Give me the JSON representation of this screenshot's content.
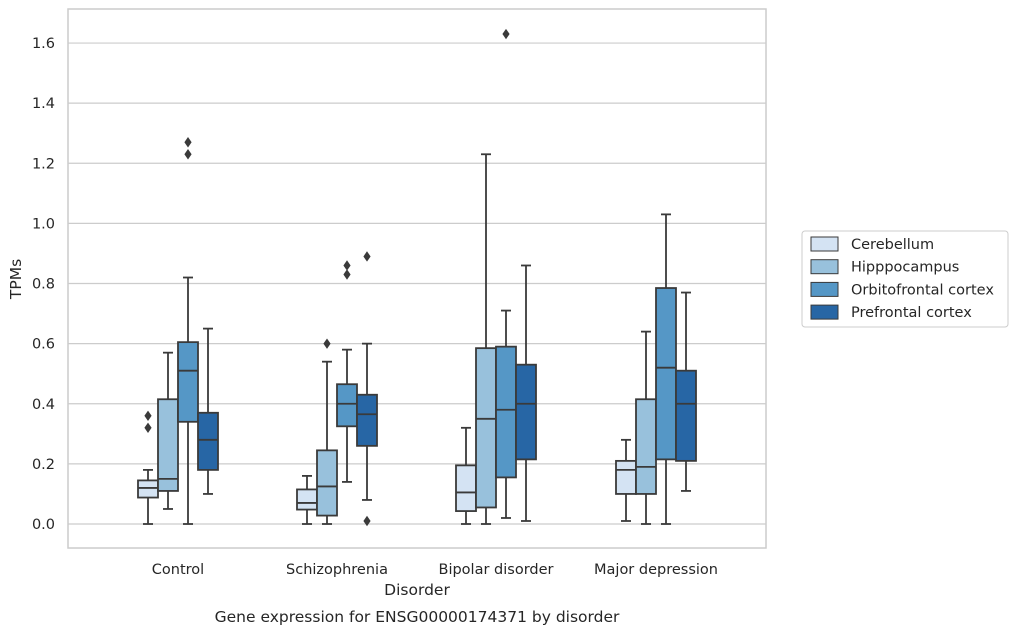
{
  "chart_data": {
    "type": "box",
    "title": "",
    "caption": "Gene expression for ENSG00000174371 by disorder",
    "xlabel": "Disorder",
    "ylabel": "TPMs",
    "ylim": [
      -0.08,
      1.72
    ],
    "yticks": [
      "0.0",
      "0.2",
      "0.4",
      "0.6",
      "0.8",
      "1.0",
      "1.2",
      "1.4",
      "1.6"
    ],
    "grid": "horizontal",
    "legend_position": "right",
    "categories": [
      "Control",
      "Schizophrenia",
      "Bipolar disorder",
      "Major depression"
    ],
    "series": [
      {
        "name": "Cerebellum",
        "color": "#d4e3f3",
        "boxes": [
          {
            "whislo": 0.0,
            "q1": 0.088,
            "med": 0.12,
            "q3": 0.145,
            "whishi": 0.18,
            "fliers": [
              0.32,
              0.36
            ]
          },
          {
            "whislo": 0.0,
            "q1": 0.048,
            "med": 0.07,
            "q3": 0.115,
            "whishi": 0.16,
            "fliers": []
          },
          {
            "whislo": 0.0,
            "q1": 0.043,
            "med": 0.105,
            "q3": 0.195,
            "whishi": 0.32,
            "fliers": []
          },
          {
            "whislo": 0.01,
            "q1": 0.1,
            "med": 0.18,
            "q3": 0.21,
            "whishi": 0.28,
            "fliers": []
          }
        ]
      },
      {
        "name": "Hipppocampus",
        "color": "#98c1dc",
        "boxes": [
          {
            "whislo": 0.05,
            "q1": 0.11,
            "med": 0.15,
            "q3": 0.415,
            "whishi": 0.57,
            "fliers": []
          },
          {
            "whislo": 0.0,
            "q1": 0.028,
            "med": 0.125,
            "q3": 0.245,
            "whishi": 0.54,
            "fliers": [
              0.6
            ]
          },
          {
            "whislo": 0.0,
            "q1": 0.055,
            "med": 0.35,
            "q3": 0.585,
            "whishi": 1.23,
            "fliers": []
          },
          {
            "whislo": 0.0,
            "q1": 0.1,
            "med": 0.19,
            "q3": 0.415,
            "whishi": 0.64,
            "fliers": []
          }
        ]
      },
      {
        "name": "Orbitofrontal cortex",
        "color": "#5597c6",
        "boxes": [
          {
            "whislo": 0.0,
            "q1": 0.34,
            "med": 0.51,
            "q3": 0.605,
            "whishi": 0.82,
            "fliers": [
              1.23,
              1.27
            ]
          },
          {
            "whislo": 0.14,
            "q1": 0.325,
            "med": 0.4,
            "q3": 0.465,
            "whishi": 0.58,
            "fliers": [
              0.83,
              0.86
            ]
          },
          {
            "whislo": 0.02,
            "q1": 0.155,
            "med": 0.38,
            "q3": 0.59,
            "whishi": 0.71,
            "fliers": [
              1.63
            ]
          },
          {
            "whislo": 0.0,
            "q1": 0.215,
            "med": 0.52,
            "q3": 0.785,
            "whishi": 1.03,
            "fliers": []
          }
        ]
      },
      {
        "name": "Prefrontal cortex",
        "color": "#2766a5",
        "boxes": [
          {
            "whislo": 0.1,
            "q1": 0.18,
            "med": 0.28,
            "q3": 0.37,
            "whishi": 0.65,
            "fliers": []
          },
          {
            "whislo": 0.08,
            "q1": 0.26,
            "med": 0.365,
            "q3": 0.43,
            "whishi": 0.6,
            "fliers": [
              0.01,
              0.89
            ]
          },
          {
            "whislo": 0.01,
            "q1": 0.215,
            "med": 0.4,
            "q3": 0.53,
            "whishi": 0.86,
            "fliers": []
          },
          {
            "whislo": 0.11,
            "q1": 0.21,
            "med": 0.4,
            "q3": 0.51,
            "whishi": 0.77,
            "fliers": []
          }
        ]
      }
    ]
  }
}
